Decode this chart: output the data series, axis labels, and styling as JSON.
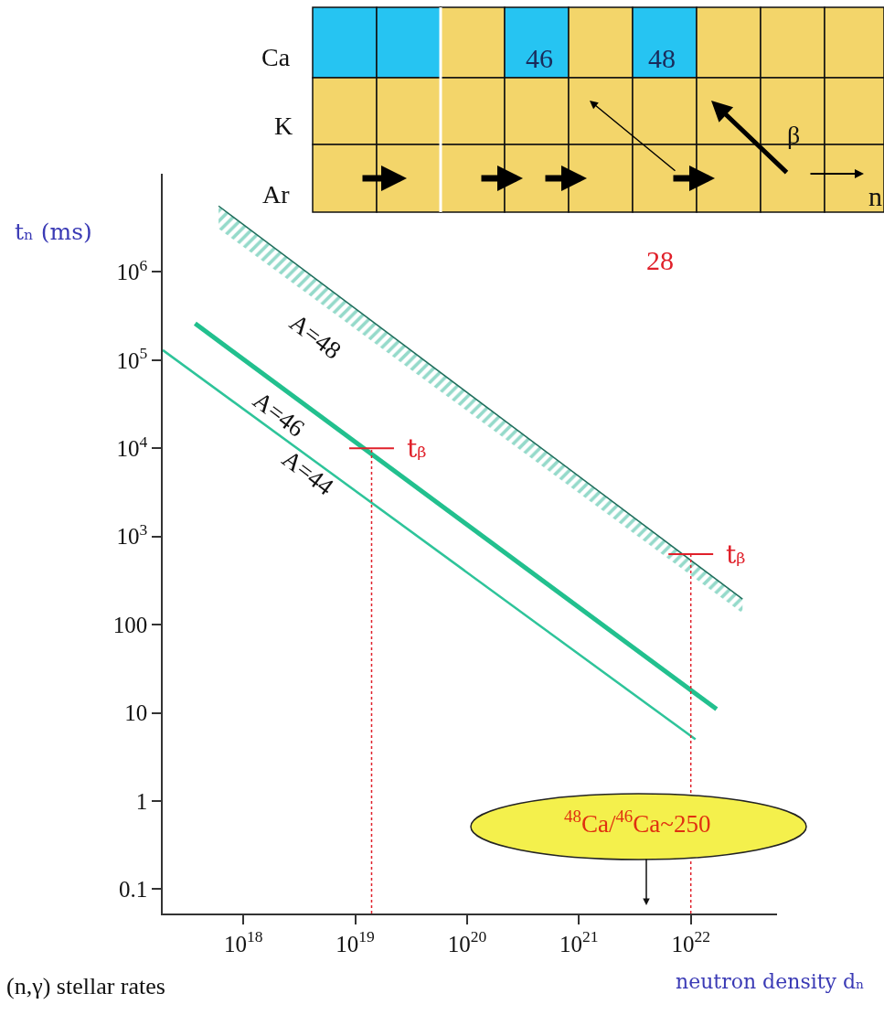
{
  "chart_data": {
    "type": "line",
    "ylabel": "tₙ (ms)",
    "xlabel": "neutron density dₙ",
    "log": "xy",
    "xlim": [
      1.9e+17,
      5.9e+22
    ],
    "ylim": [
      0.053,
      13000000.0
    ],
    "xticks": [
      {
        "value": 1e+18,
        "label": "10$^{18}$"
      },
      {
        "value": 1e+19,
        "label": "10$^{19}$"
      },
      {
        "value": 1e+20,
        "label": "10$^{20}$"
      },
      {
        "value": 1e+21,
        "label": "10$^{21}$"
      },
      {
        "value": 1e+22,
        "label": "10$^{22}$"
      }
    ],
    "yticks": [
      0.1,
      1,
      10,
      100,
      {
        "value": 1000,
        "label": "10$^{3}$"
      },
      {
        "value": 10000,
        "label": "10$^{4}$"
      },
      {
        "value": 100000,
        "label": "10$^{5}$"
      },
      {
        "value": 1000000,
        "label": "10$^{6}$"
      }
    ],
    "series": [
      {
        "color": "#1f6e5c",
        "x": [
          6e+17,
          2.9e+22
        ],
        "values": [
          5600000.0,
          195
        ],
        "lower": [
          3100000.0,
          135
        ],
        "upper": [
          5600000.0,
          195
        ]
      },
      {
        "color": "#22c08e",
        "x": [
          3.7e+17,
          1.7e+22
        ],
        "values": [
          260000.0,
          11
        ]
      },
      {
        "color": "#2ec49a",
        "x": [
          1.9e+17,
          1.1e+22
        ],
        "values": [
          130000.0,
          5
        ]
      }
    ],
    "ref_lines": [
      {
        "axis": "x",
        "value": 1.4e+19,
        "color": "#e0202a",
        "line_style": "dotted"
      },
      {
        "axis": "x",
        "value": 1e+22,
        "color": "#e0202a",
        "line_style": "dotted"
      }
    ],
    "annotations": [
      "A=48",
      "A=46",
      "A=44",
      {
        "text": "tᵦ",
        "x": 1.4e+19,
        "y": 10000.0
      },
      {
        "text": "tᵦ",
        "x": 1e+22,
        "y": 630
      },
      "$^{48}$Ca/$^{46}$Ca~250",
      "(n,γ) stellar rates",
      "Ca",
      "K",
      "Ar",
      "46",
      "48",
      "β",
      "n",
      "28"
    ]
  }
}
